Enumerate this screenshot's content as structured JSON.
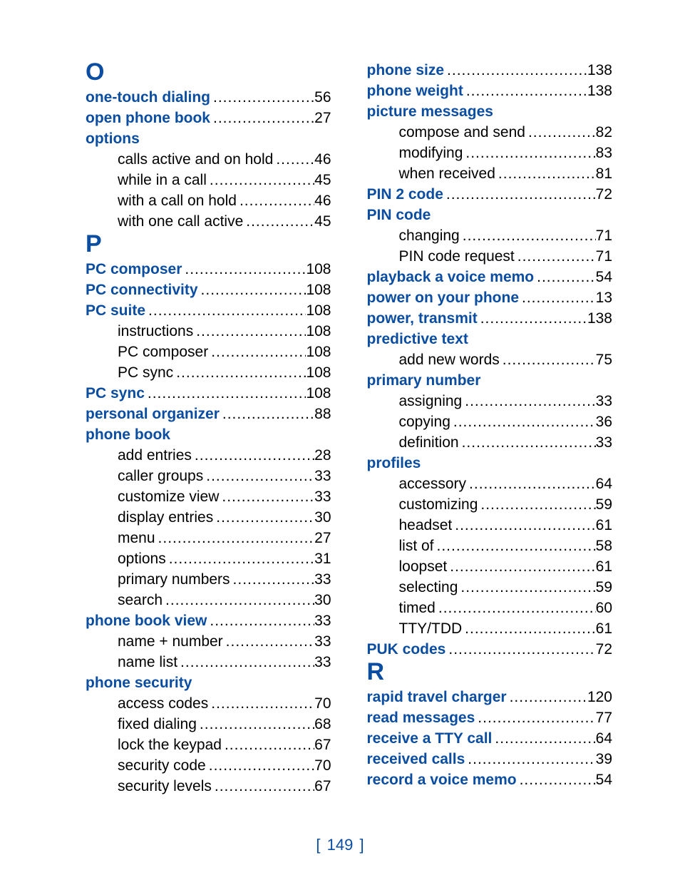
{
  "page_number": "149",
  "colors": {
    "blue": "#0a4da1",
    "black": "#000000",
    "background": "#ffffff"
  },
  "fontsize": {
    "letter": 34,
    "entry": 21,
    "footer": 22
  },
  "columns": [
    {
      "blocks": [
        {
          "type": "letter",
          "text": "O"
        },
        {
          "type": "main",
          "term": "one-touch dialing",
          "page": "56"
        },
        {
          "type": "main",
          "term": "open phone book",
          "page": "27"
        },
        {
          "type": "main",
          "term": "options",
          "header_only": true
        },
        {
          "type": "sub",
          "term": "calls active and on hold",
          "page": "46"
        },
        {
          "type": "sub",
          "term": "while in a call",
          "page": "45"
        },
        {
          "type": "sub",
          "term": "with a call on hold",
          "page": "46"
        },
        {
          "type": "sub",
          "term": "with one call active",
          "page": "45"
        },
        {
          "type": "letter",
          "text": "P"
        },
        {
          "type": "main",
          "term": "PC composer",
          "page": "108"
        },
        {
          "type": "main",
          "term": "PC connectivity",
          "page": "108"
        },
        {
          "type": "main",
          "term": "PC suite",
          "page": "108"
        },
        {
          "type": "sub",
          "term": "instructions",
          "page": "108"
        },
        {
          "type": "sub",
          "term": "PC composer",
          "page": "108"
        },
        {
          "type": "sub",
          "term": "PC sync",
          "page": "108"
        },
        {
          "type": "main",
          "term": "PC sync",
          "page": "108"
        },
        {
          "type": "main",
          "term": "personal organizer",
          "page": "88"
        },
        {
          "type": "main",
          "term": "phone book",
          "header_only": true
        },
        {
          "type": "sub",
          "term": "add entries",
          "page": "28"
        },
        {
          "type": "sub",
          "term": "caller groups",
          "page": "33"
        },
        {
          "type": "sub",
          "term": "customize view",
          "page": "33"
        },
        {
          "type": "sub",
          "term": "display entries",
          "page": "30"
        },
        {
          "type": "sub",
          "term": "menu",
          "page": "27"
        },
        {
          "type": "sub",
          "term": "options",
          "page": "31"
        },
        {
          "type": "sub",
          "term": "primary numbers",
          "page": "33"
        },
        {
          "type": "sub",
          "term": "search",
          "page": "30"
        },
        {
          "type": "main",
          "term": "phone book view",
          "page": "33"
        },
        {
          "type": "sub",
          "term": "name + number",
          "page": "33"
        },
        {
          "type": "sub",
          "term": "name list",
          "page": "33"
        },
        {
          "type": "main",
          "term": "phone security",
          "header_only": true
        },
        {
          "type": "sub",
          "term": "access codes",
          "page": "70"
        },
        {
          "type": "sub",
          "term": "fixed dialing",
          "page": "68"
        },
        {
          "type": "sub",
          "term": "lock the keypad",
          "page": "67"
        },
        {
          "type": "sub",
          "term": "security code",
          "page": "70"
        },
        {
          "type": "sub",
          "term": "security levels",
          "page": "67"
        }
      ]
    },
    {
      "blocks": [
        {
          "type": "main",
          "term": "phone size",
          "page": "138"
        },
        {
          "type": "main",
          "term": "phone weight",
          "page": "138"
        },
        {
          "type": "main",
          "term": "picture messages",
          "header_only": true
        },
        {
          "type": "sub",
          "term": "compose and send",
          "page": "82"
        },
        {
          "type": "sub",
          "term": "modifying",
          "page": "83"
        },
        {
          "type": "sub",
          "term": "when received",
          "page": "81"
        },
        {
          "type": "main",
          "term": "PIN 2 code",
          "page": "72"
        },
        {
          "type": "main",
          "term": "PIN code",
          "header_only": true
        },
        {
          "type": "sub",
          "term": "changing",
          "page": "71"
        },
        {
          "type": "sub",
          "term": "PIN code request",
          "page": "71"
        },
        {
          "type": "main",
          "term": "playback a voice memo",
          "page": "54"
        },
        {
          "type": "main",
          "term": "power on your phone",
          "page": "13"
        },
        {
          "type": "main",
          "term": "power, transmit",
          "page": "138"
        },
        {
          "type": "main",
          "term": "predictive text",
          "header_only": true
        },
        {
          "type": "sub",
          "term": "add new words",
          "page": "75"
        },
        {
          "type": "main",
          "term": "primary number",
          "header_only": true
        },
        {
          "type": "sub",
          "term": "assigning",
          "page": "33"
        },
        {
          "type": "sub",
          "term": "copying",
          "page": "36"
        },
        {
          "type": "sub",
          "term": "definition",
          "page": "33"
        },
        {
          "type": "main",
          "term": "profiles",
          "header_only": true
        },
        {
          "type": "sub",
          "term": "accessory",
          "page": "64"
        },
        {
          "type": "sub",
          "term": "customizing",
          "page": "59"
        },
        {
          "type": "sub",
          "term": "headset",
          "page": "61"
        },
        {
          "type": "sub",
          "term": "list of",
          "page": "58"
        },
        {
          "type": "sub",
          "term": "loopset",
          "page": "61"
        },
        {
          "type": "sub",
          "term": "selecting",
          "page": "59"
        },
        {
          "type": "sub",
          "term": "timed",
          "page": "60"
        },
        {
          "type": "sub",
          "term": "TTY/TDD",
          "page": "61"
        },
        {
          "type": "main",
          "term": "PUK codes",
          "page": "72"
        },
        {
          "type": "letter",
          "text": "R"
        },
        {
          "type": "main",
          "term": "rapid travel charger",
          "page": "120"
        },
        {
          "type": "main",
          "term": "read messages",
          "page": "77"
        },
        {
          "type": "main",
          "term": "receive a TTY call",
          "page": "64"
        },
        {
          "type": "main",
          "term": "received calls",
          "page": "39"
        },
        {
          "type": "main",
          "term": "record a voice memo",
          "page": "54"
        }
      ]
    }
  ]
}
